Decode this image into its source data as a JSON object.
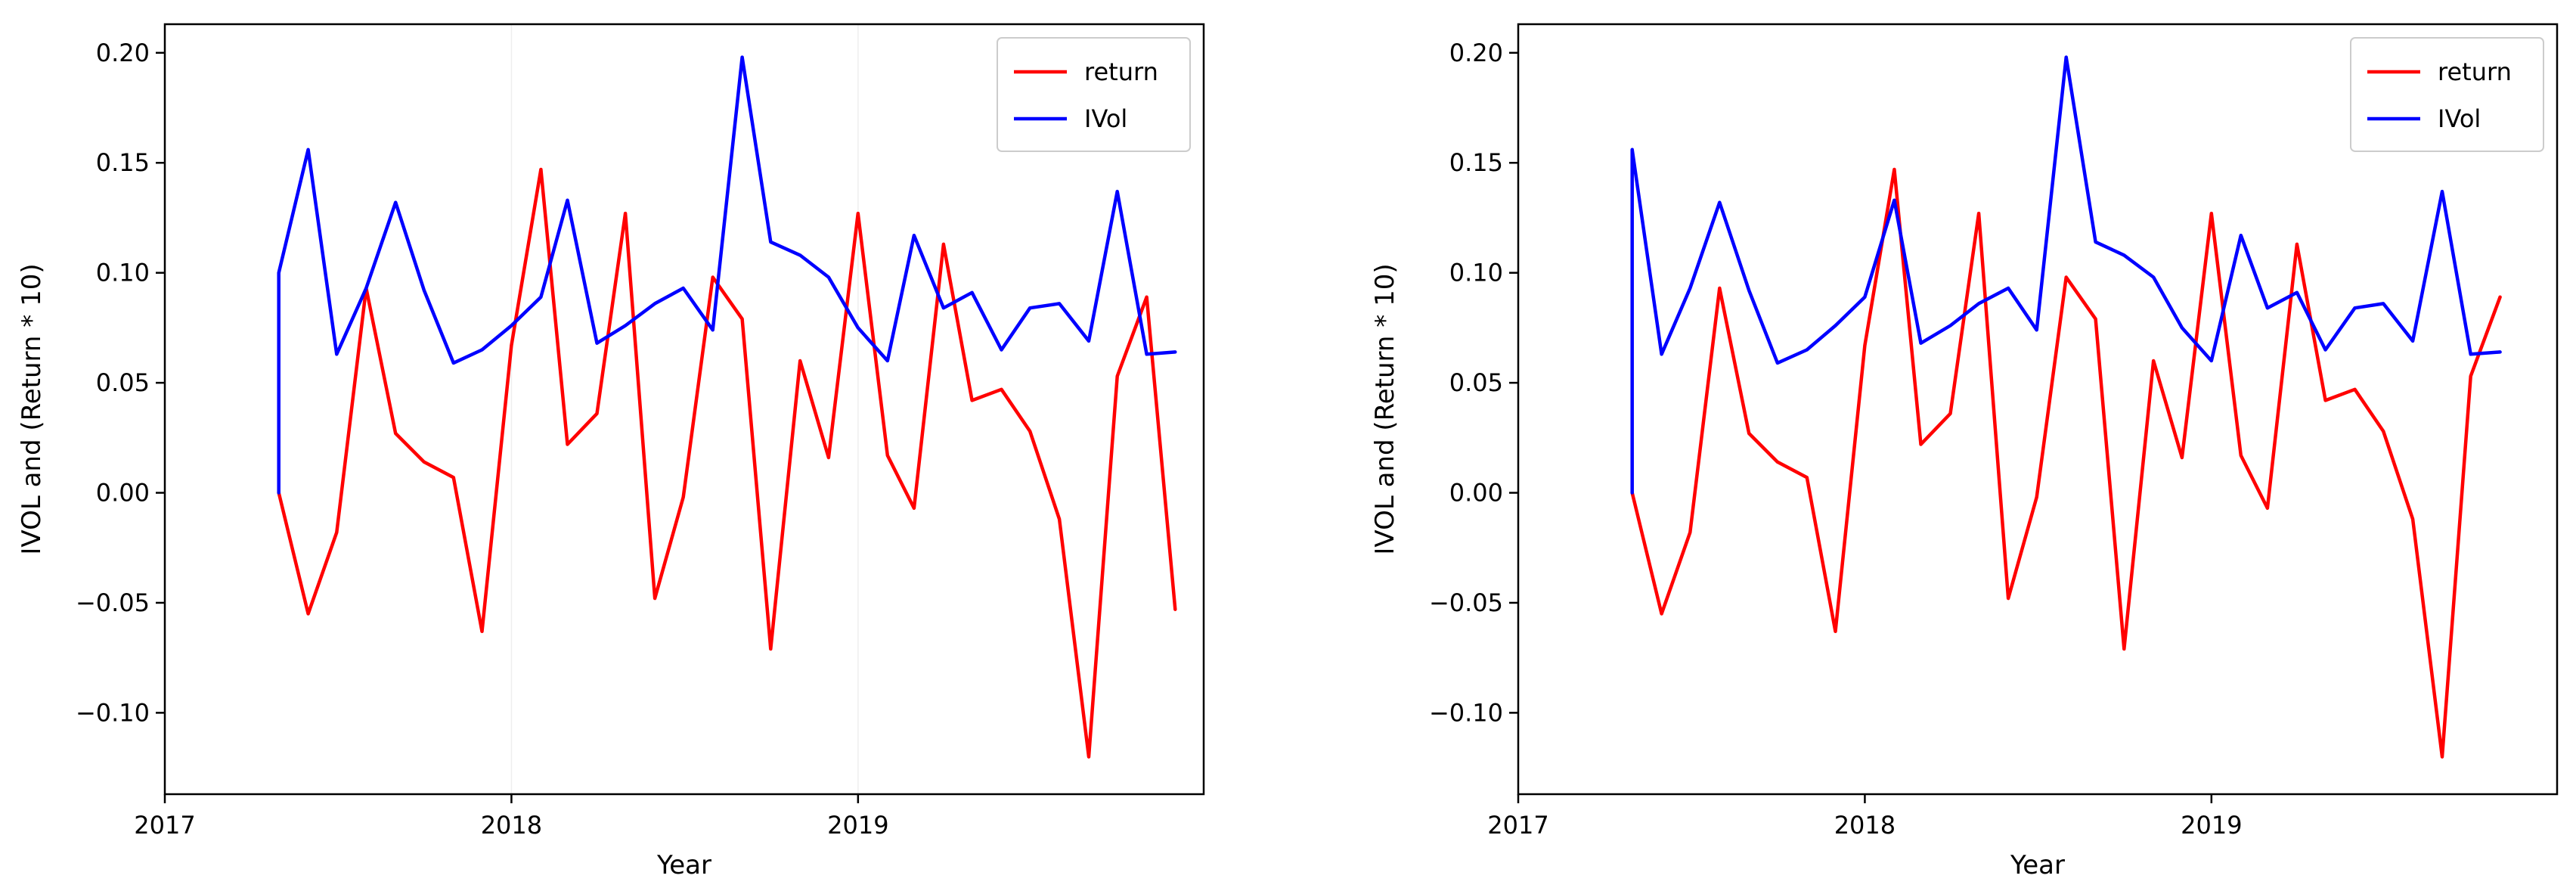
{
  "chart_data": [
    {
      "type": "line",
      "title": "",
      "xlabel": "Year",
      "ylabel": "IVOL and (Return * 10)",
      "xlim": [
        "2017-01-01",
        "2019-12-31"
      ],
      "ylim": [
        -0.137,
        0.213
      ],
      "xticks": [
        {
          "value": "2017-01-01",
          "label": "2017"
        },
        {
          "value": "2018-01-01",
          "label": "2018"
        },
        {
          "value": "2019-01-01",
          "label": "2019"
        }
      ],
      "yticks": [
        {
          "value": -0.1,
          "label": "−0.10"
        },
        {
          "value": -0.05,
          "label": "−0.05"
        },
        {
          "value": 0.0,
          "label": "0.00"
        },
        {
          "value": 0.05,
          "label": "0.05"
        },
        {
          "value": 0.1,
          "label": "0.10"
        },
        {
          "value": 0.15,
          "label": "0.15"
        },
        {
          "value": 0.2,
          "label": "0.20"
        }
      ],
      "grid": "x-only, faint",
      "legend_position": "top-right",
      "series": [
        {
          "name": "return",
          "color": "#ff0000",
          "points": [
            [
              "2017-05-01",
              0.0
            ],
            [
              "2017-06-01",
              -0.055
            ],
            [
              "2017-07-01",
              -0.018
            ],
            [
              "2017-08-01",
              0.093
            ],
            [
              "2017-09-01",
              0.027
            ],
            [
              "2017-10-01",
              0.014
            ],
            [
              "2017-11-01",
              0.007
            ],
            [
              "2017-12-01",
              -0.063
            ],
            [
              "2018-01-01",
              0.067
            ],
            [
              "2018-02-01",
              0.147
            ],
            [
              "2018-03-01",
              0.022
            ],
            [
              "2018-04-01",
              0.036
            ],
            [
              "2018-05-01",
              0.127
            ],
            [
              "2018-06-01",
              -0.048
            ],
            [
              "2018-07-01",
              -0.002
            ],
            [
              "2018-08-01",
              0.098
            ],
            [
              "2018-09-01",
              0.079
            ],
            [
              "2018-10-01",
              -0.071
            ],
            [
              "2018-11-01",
              0.06
            ],
            [
              "2018-12-01",
              0.016
            ],
            [
              "2019-01-01",
              0.127
            ],
            [
              "2019-02-01",
              0.017
            ],
            [
              "2019-03-01",
              -0.007
            ],
            [
              "2019-04-01",
              0.113
            ],
            [
              "2019-05-01",
              0.042
            ],
            [
              "2019-06-01",
              0.047
            ],
            [
              "2019-07-01",
              0.028
            ],
            [
              "2019-08-01",
              -0.012
            ],
            [
              "2019-09-01",
              -0.12
            ],
            [
              "2019-10-01",
              0.053
            ],
            [
              "2019-11-01",
              0.089
            ],
            [
              "2019-12-01",
              -0.053
            ]
          ]
        },
        {
          "name": "IVol",
          "color": "#0000ff",
          "points": [
            [
              "2017-05-01",
              0.0
            ],
            [
              "2017-05-01",
              0.1
            ],
            [
              "2017-06-01",
              0.156
            ],
            [
              "2017-07-01",
              0.063
            ],
            [
              "2017-08-01",
              0.093
            ],
            [
              "2017-09-01",
              0.132
            ],
            [
              "2017-10-01",
              0.092
            ],
            [
              "2017-11-01",
              0.059
            ],
            [
              "2017-12-01",
              0.065
            ],
            [
              "2018-01-01",
              0.076
            ],
            [
              "2018-02-01",
              0.089
            ],
            [
              "2018-03-01",
              0.133
            ],
            [
              "2018-04-01",
              0.068
            ],
            [
              "2018-05-01",
              0.076
            ],
            [
              "2018-06-01",
              0.086
            ],
            [
              "2018-07-01",
              0.093
            ],
            [
              "2018-08-01",
              0.074
            ],
            [
              "2018-09-01",
              0.198
            ],
            [
              "2018-10-01",
              0.114
            ],
            [
              "2018-11-01",
              0.108
            ],
            [
              "2018-12-01",
              0.098
            ],
            [
              "2019-01-01",
              0.075
            ],
            [
              "2019-02-01",
              0.06
            ],
            [
              "2019-03-01",
              0.117
            ],
            [
              "2019-04-01",
              0.084
            ],
            [
              "2019-05-01",
              0.091
            ],
            [
              "2019-06-01",
              0.065
            ],
            [
              "2019-07-01",
              0.084
            ],
            [
              "2019-08-01",
              0.086
            ],
            [
              "2019-09-01",
              0.069
            ],
            [
              "2019-10-01",
              0.137
            ],
            [
              "2019-11-01",
              0.063
            ],
            [
              "2019-12-01",
              0.064
            ]
          ]
        }
      ]
    },
    {
      "type": "line",
      "title": "",
      "xlabel": "Year",
      "ylabel": "IVOL and (Return * 10)",
      "xlim": [
        "2017-01-01",
        "2019-12-31"
      ],
      "ylim": [
        -0.137,
        0.213
      ],
      "xticks": [
        {
          "value": "2017-01-01",
          "label": "2017"
        },
        {
          "value": "2018-01-01",
          "label": "2018"
        },
        {
          "value": "2019-01-01",
          "label": "2019"
        }
      ],
      "yticks": [
        {
          "value": -0.1,
          "label": "−0.10"
        },
        {
          "value": -0.05,
          "label": "−0.05"
        },
        {
          "value": 0.0,
          "label": "0.00"
        },
        {
          "value": 0.05,
          "label": "0.05"
        },
        {
          "value": 0.1,
          "label": "0.10"
        },
        {
          "value": 0.15,
          "label": "0.15"
        },
        {
          "value": 0.2,
          "label": "0.20"
        }
      ],
      "grid": "none",
      "legend_position": "top-right",
      "series": [
        {
          "name": "return",
          "color": "#ff0000",
          "points": [
            [
              "2017-05-01",
              0.0
            ],
            [
              "2017-06-01",
              -0.055
            ],
            [
              "2017-07-01",
              -0.018
            ],
            [
              "2017-08-01",
              0.093
            ],
            [
              "2017-09-01",
              0.027
            ],
            [
              "2017-10-01",
              0.014
            ],
            [
              "2017-11-01",
              0.007
            ],
            [
              "2017-12-01",
              -0.063
            ],
            [
              "2018-01-01",
              0.067
            ],
            [
              "2018-02-01",
              0.147
            ],
            [
              "2018-03-01",
              0.022
            ],
            [
              "2018-04-01",
              0.036
            ],
            [
              "2018-05-01",
              0.127
            ],
            [
              "2018-06-01",
              -0.048
            ],
            [
              "2018-07-01",
              -0.002
            ],
            [
              "2018-08-01",
              0.098
            ],
            [
              "2018-09-01",
              0.079
            ],
            [
              "2018-10-01",
              -0.071
            ],
            [
              "2018-11-01",
              0.06
            ],
            [
              "2018-12-01",
              0.016
            ],
            [
              "2019-01-01",
              0.127
            ],
            [
              "2019-02-01",
              0.017
            ],
            [
              "2019-03-01",
              -0.007
            ],
            [
              "2019-04-01",
              0.113
            ],
            [
              "2019-05-01",
              0.042
            ],
            [
              "2019-06-01",
              0.047
            ],
            [
              "2019-07-01",
              0.028
            ],
            [
              "2019-08-01",
              -0.012
            ],
            [
              "2019-09-01",
              -0.12
            ],
            [
              "2019-10-01",
              0.053
            ],
            [
              "2019-11-01",
              0.089
            ]
          ]
        },
        {
          "name": "IVol",
          "color": "#0000ff",
          "points": [
            [
              "2017-05-01",
              0.0
            ],
            [
              "2017-05-01",
              0.156
            ],
            [
              "2017-06-01",
              0.063
            ],
            [
              "2017-07-01",
              0.093
            ],
            [
              "2017-08-01",
              0.132
            ],
            [
              "2017-09-01",
              0.092
            ],
            [
              "2017-10-01",
              0.059
            ],
            [
              "2017-11-01",
              0.065
            ],
            [
              "2017-12-01",
              0.076
            ],
            [
              "2018-01-01",
              0.089
            ],
            [
              "2018-02-01",
              0.133
            ],
            [
              "2018-03-01",
              0.068
            ],
            [
              "2018-04-01",
              0.076
            ],
            [
              "2018-05-01",
              0.086
            ],
            [
              "2018-06-01",
              0.093
            ],
            [
              "2018-07-01",
              0.074
            ],
            [
              "2018-08-01",
              0.198
            ],
            [
              "2018-09-01",
              0.114
            ],
            [
              "2018-10-01",
              0.108
            ],
            [
              "2018-11-01",
              0.098
            ],
            [
              "2018-12-01",
              0.075
            ],
            [
              "2019-01-01",
              0.06
            ],
            [
              "2019-02-01",
              0.117
            ],
            [
              "2019-03-01",
              0.084
            ],
            [
              "2019-04-01",
              0.091
            ],
            [
              "2019-05-01",
              0.065
            ],
            [
              "2019-06-01",
              0.084
            ],
            [
              "2019-07-01",
              0.086
            ],
            [
              "2019-08-01",
              0.069
            ],
            [
              "2019-09-01",
              0.137
            ],
            [
              "2019-10-01",
              0.063
            ],
            [
              "2019-11-01",
              0.064
            ]
          ]
        }
      ]
    }
  ]
}
